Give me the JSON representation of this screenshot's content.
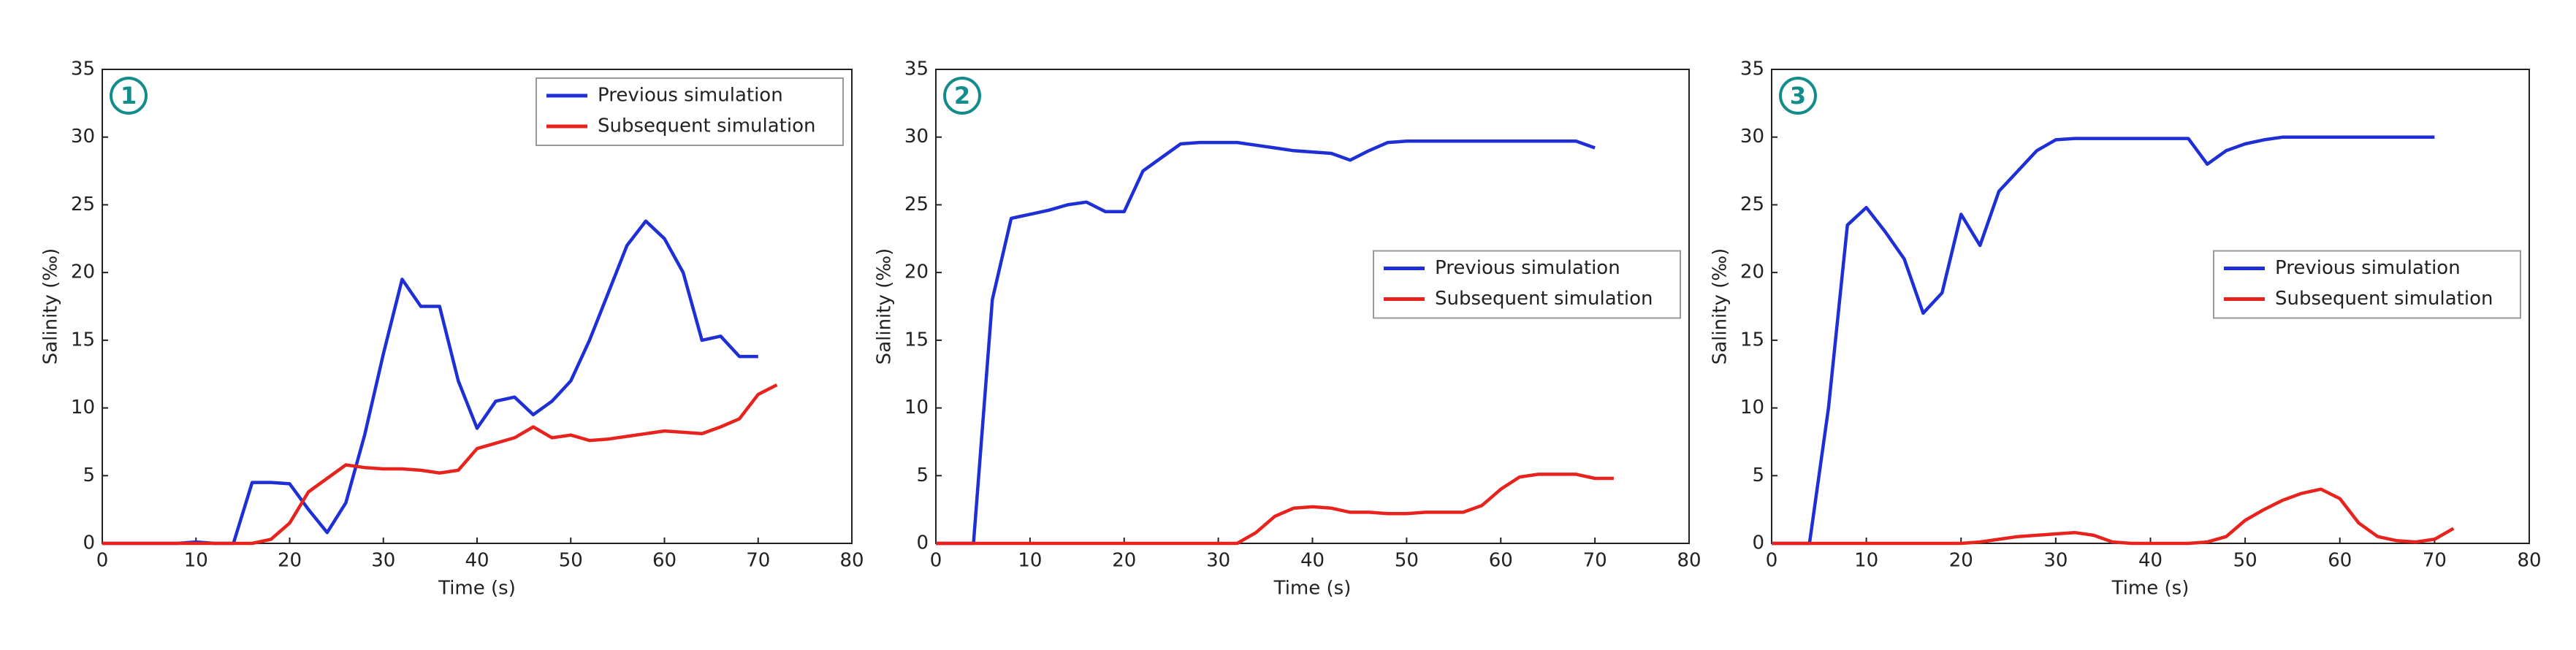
{
  "chart_data": [
    {
      "type": "line",
      "panel_label": "1",
      "x_label": "Time (s)",
      "y_label": "Salinity (‰)",
      "xlim": [
        0,
        80
      ],
      "ylim": [
        0,
        35
      ],
      "xticks": [
        0,
        10,
        20,
        30,
        40,
        50,
        60,
        70,
        80
      ],
      "yticks": [
        0,
        5,
        10,
        15,
        20,
        25,
        30,
        35
      ],
      "legend": "upper right",
      "x": [
        0,
        2,
        4,
        6,
        8,
        10,
        12,
        14,
        16,
        18,
        20,
        22,
        24,
        26,
        28,
        30,
        32,
        34,
        36,
        38,
        40,
        42,
        44,
        46,
        48,
        50,
        52,
        54,
        56,
        58,
        60,
        62,
        64,
        66,
        68,
        70,
        72
      ],
      "series": [
        {
          "name": "Previous simulation",
          "color": "#1f2fd6",
          "values": [
            0,
            0,
            0,
            0,
            0,
            0.1,
            0,
            0,
            4.5,
            4.5,
            4.4,
            2.5,
            0.8,
            3,
            8,
            14,
            19.5,
            17.5,
            17.5,
            12,
            8.5,
            10.5,
            10.8,
            9.5,
            10.5,
            12,
            15,
            18.5,
            22,
            23.8,
            22.5,
            20,
            15,
            15.3,
            13.8,
            13.8,
            null
          ]
        },
        {
          "name": "Subsequent simulation",
          "color": "#e8231e",
          "values": [
            0,
            0,
            0,
            0,
            0,
            0,
            0,
            0,
            0,
            0.3,
            1.5,
            3.8,
            4.8,
            5.8,
            5.6,
            5.5,
            5.5,
            5.4,
            5.2,
            5.4,
            7,
            7.4,
            7.8,
            8.6,
            7.8,
            8,
            7.6,
            7.7,
            7.9,
            8.1,
            8.3,
            8.2,
            8.1,
            8.6,
            9.2,
            11,
            11.7
          ]
        }
      ]
    },
    {
      "type": "line",
      "panel_label": "2",
      "x_label": "Time (s)",
      "y_label": "Salinity (‰)",
      "xlim": [
        0,
        80
      ],
      "ylim": [
        0,
        35
      ],
      "xticks": [
        0,
        10,
        20,
        30,
        40,
        50,
        60,
        70,
        80
      ],
      "yticks": [
        0,
        5,
        10,
        15,
        20,
        25,
        30,
        35
      ],
      "legend": "center right",
      "x": [
        0,
        2,
        4,
        6,
        8,
        10,
        12,
        14,
        16,
        18,
        20,
        22,
        24,
        26,
        28,
        30,
        32,
        34,
        36,
        38,
        40,
        42,
        44,
        46,
        48,
        50,
        52,
        54,
        56,
        58,
        60,
        62,
        64,
        66,
        68,
        70,
        72
      ],
      "series": [
        {
          "name": "Previous simulation",
          "color": "#1f2fd6",
          "values": [
            0,
            0,
            0,
            18,
            24,
            24.3,
            24.6,
            25,
            25.2,
            24.5,
            24.5,
            27.5,
            28.5,
            29.5,
            29.6,
            29.6,
            29.6,
            29.4,
            29.2,
            29,
            28.9,
            28.8,
            28.3,
            29,
            29.6,
            29.7,
            29.7,
            29.7,
            29.7,
            29.7,
            29.7,
            29.7,
            29.7,
            29.7,
            29.7,
            29.2,
            null
          ]
        },
        {
          "name": "Subsequent simulation",
          "color": "#e8231e",
          "values": [
            0,
            0,
            0,
            0,
            0,
            0,
            0,
            0,
            0,
            0,
            0,
            0,
            0,
            0,
            0,
            0,
            0,
            0.8,
            2,
            2.6,
            2.7,
            2.6,
            2.3,
            2.3,
            2.2,
            2.2,
            2.3,
            2.3,
            2.3,
            2.8,
            4,
            4.9,
            5.1,
            5.1,
            5.1,
            4.8,
            4.8
          ]
        }
      ]
    },
    {
      "type": "line",
      "panel_label": "3",
      "x_label": "Time (s)",
      "y_label": "Salinity (‰)",
      "xlim": [
        0,
        80
      ],
      "ylim": [
        0,
        35
      ],
      "xticks": [
        0,
        10,
        20,
        30,
        40,
        50,
        60,
        70,
        80
      ],
      "yticks": [
        0,
        5,
        10,
        15,
        20,
        25,
        30,
        35
      ],
      "legend": "center right",
      "x": [
        0,
        2,
        4,
        6,
        8,
        10,
        12,
        14,
        16,
        18,
        20,
        22,
        24,
        26,
        28,
        30,
        32,
        34,
        36,
        38,
        40,
        42,
        44,
        46,
        48,
        50,
        52,
        54,
        56,
        58,
        60,
        62,
        64,
        66,
        68,
        70,
        72
      ],
      "series": [
        {
          "name": "Previous simulation",
          "color": "#1f2fd6",
          "values": [
            0,
            0,
            0,
            10,
            23.5,
            24.8,
            23,
            21,
            17,
            18.5,
            24.3,
            22,
            26,
            27.5,
            29,
            29.8,
            29.9,
            29.9,
            29.9,
            29.9,
            29.9,
            29.9,
            29.9,
            28,
            29,
            29.5,
            29.8,
            30,
            30,
            30,
            30,
            30,
            30,
            30,
            30,
            30,
            null
          ]
        },
        {
          "name": "Subsequent simulation",
          "color": "#e8231e",
          "values": [
            0,
            0,
            0,
            0,
            0,
            0,
            0,
            0,
            0,
            0,
            0,
            0.1,
            0.3,
            0.5,
            0.6,
            0.7,
            0.8,
            0.6,
            0.1,
            0,
            0,
            0,
            0,
            0.1,
            0.5,
            1.7,
            2.5,
            3.2,
            3.7,
            4,
            3.3,
            1.5,
            0.5,
            0.2,
            0.1,
            0.3,
            1.1
          ]
        }
      ]
    }
  ]
}
